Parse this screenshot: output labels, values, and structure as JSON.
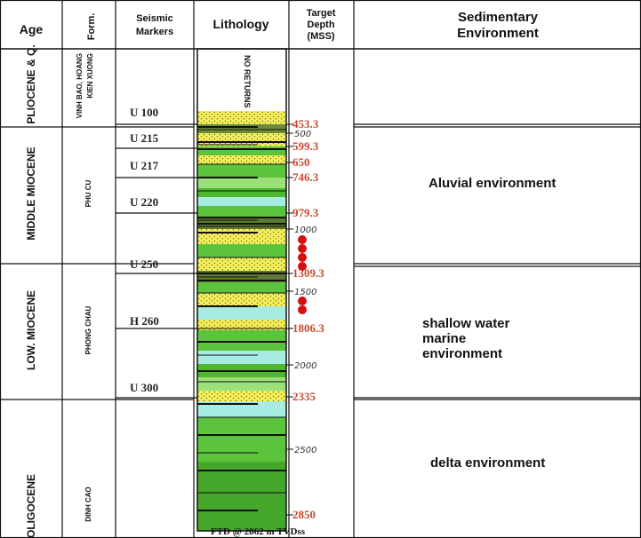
{
  "header": {
    "age": "Age",
    "formation": "Form.",
    "seismic_markers": [
      "Seismic",
      "Markers"
    ],
    "lithology": "Lithology",
    "target_depth": [
      "Target",
      "Depth",
      "(MSS)"
    ],
    "environment": [
      "Sedimentary",
      "Environment"
    ]
  },
  "intervals": [
    {
      "age": "PLIOCENE & Q.",
      "formation": [
        "VINH BAO, HOANG",
        "KIEN XUONG"
      ]
    },
    {
      "age": "MIDDLE MIOCENE",
      "formation": [
        "PHU CU"
      ],
      "environment": "Aluvial environment"
    },
    {
      "age": "LOW. MIOCENE",
      "formation": [
        "PHONG CHAU"
      ],
      "environment": "shallow water marine environment"
    },
    {
      "age": "OLIGOCENE",
      "formation": [
        "DINH CAO"
      ],
      "environment": "delta environment"
    }
  ],
  "seismic_markers": [
    "U 100",
    "U 215",
    "U 217",
    "U 220",
    "U 250",
    "H 260",
    "U 300"
  ],
  "depth_labels": [
    453.3,
    500,
    599.3,
    650,
    746.3,
    979.3,
    1000,
    1309.3,
    1500,
    1806.3,
    2000,
    2335,
    2500,
    2850
  ],
  "lithology_note": "NO RETURNS",
  "footer": "FTD @ 2862 m TVDss"
}
